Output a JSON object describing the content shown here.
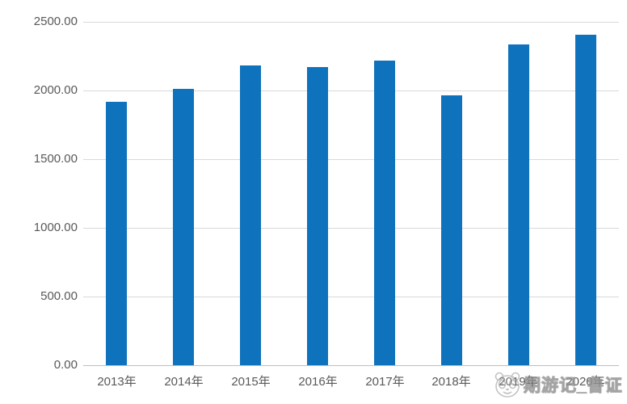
{
  "chart_data": {
    "type": "bar",
    "title": "",
    "xlabel": "",
    "ylabel": "",
    "categories": [
      "2013年",
      "2014年",
      "2015年",
      "2016年",
      "2017年",
      "2018年",
      "2019年",
      "2020年"
    ],
    "values": [
      1920,
      2010,
      2180,
      2170,
      2220,
      1965,
      2335,
      2405
    ],
    "ylim": [
      0,
      2500
    ],
    "ytick_step": 500,
    "yticks": [
      "0.00",
      "500.00",
      "1000.00",
      "1500.00",
      "2000.00",
      "2500.00"
    ],
    "grid": true,
    "legend_position": "none"
  },
  "colors": {
    "bar": "#0f72bc",
    "gridline": "#d9d9d9",
    "baseline": "#bfbfbf",
    "axis_label": "#595959",
    "background": "#ffffff",
    "watermark": "#828282"
  },
  "watermark": {
    "icon": "panda-face",
    "text": "期游记_鲁证"
  }
}
